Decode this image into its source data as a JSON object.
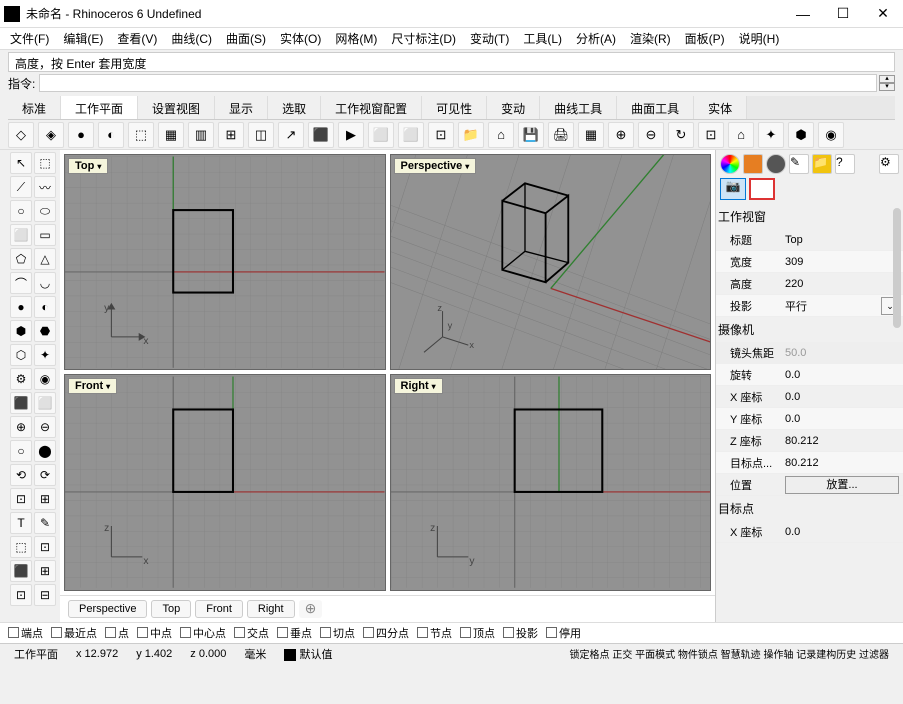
{
  "title": "未命名 - Rhinoceros 6 Undefined",
  "menubar": [
    "文件(F)",
    "编辑(E)",
    "查看(V)",
    "曲线(C)",
    "曲面(S)",
    "实体(O)",
    "网格(M)",
    "尺寸标注(D)",
    "变动(T)",
    "工具(L)",
    "分析(A)",
    "渲染(R)",
    "面板(P)",
    "说明(H)"
  ],
  "history_text": "高度，按 Enter 套用宽度",
  "command_label": "指令:",
  "tabs": [
    "标准",
    "工作平面",
    "设置视图",
    "显示",
    "选取",
    "工作视窗配置",
    "可见性",
    "变动",
    "曲线工具",
    "曲面工具",
    "实体"
  ],
  "active_tab_index": 1,
  "viewports": {
    "top": {
      "label": "Top",
      "axes": [
        "x",
        "y"
      ],
      "colors": [
        "#c41e1e",
        "#1e7e1e"
      ]
    },
    "perspective": {
      "label": "Perspective",
      "axes": [
        "x",
        "y",
        "z"
      ]
    },
    "front": {
      "label": "Front",
      "axes": [
        "x",
        "z"
      ],
      "colors": [
        "#c41e1e",
        "#1e7e1e"
      ]
    },
    "right": {
      "label": "Right",
      "axes": [
        "y",
        "z"
      ],
      "colors": [
        "#c41e1e",
        "#1e7e1e"
      ]
    }
  },
  "viewport_tabs": [
    "Perspective",
    "Top",
    "Front",
    "Right"
  ],
  "prop_panel": {
    "section1_title": "工作视窗",
    "rows1": [
      {
        "label": "标题",
        "value": "Top"
      },
      {
        "label": "宽度",
        "value": "309"
      },
      {
        "label": "高度",
        "value": "220"
      },
      {
        "label": "投影",
        "value": "平行",
        "dropdown": true
      }
    ],
    "section2_title": "摄像机",
    "rows2": [
      {
        "label": "镜头焦距",
        "value": "50.0",
        "disabled": true
      },
      {
        "label": "旋转",
        "value": "0.0"
      },
      {
        "label": "X 座标",
        "value": "0.0"
      },
      {
        "label": "Y 座标",
        "value": "0.0"
      },
      {
        "label": "Z 座标",
        "value": "80.212"
      },
      {
        "label": "目标点...",
        "value": "80.212"
      },
      {
        "label": "位置",
        "button": "放置..."
      }
    ],
    "section3_title": "目标点",
    "rows3": [
      {
        "label": "X 座标",
        "value": "0.0"
      }
    ]
  },
  "osnaps": [
    "端点",
    "最近点",
    "点",
    "中点",
    "中心点",
    "交点",
    "垂点",
    "切点",
    "四分点",
    "节点",
    "顶点",
    "投影",
    "停用"
  ],
  "status": {
    "plane": "工作平面",
    "x": "x 12.972",
    "y": "y 1.402",
    "z": "z 0.000",
    "unit": "毫米",
    "layer": "默认值",
    "modes": "锁定格点 正交 平面模式 物件锁点 智慧轨迹 操作轴 记录建构历史 过滤器"
  },
  "colors": {
    "viewport_bg": "#929292",
    "grid_line": "#7a7a7a",
    "axis_red": "#a02020",
    "axis_green": "#208020",
    "axis_blue": "#203080",
    "wire": "#000000"
  }
}
